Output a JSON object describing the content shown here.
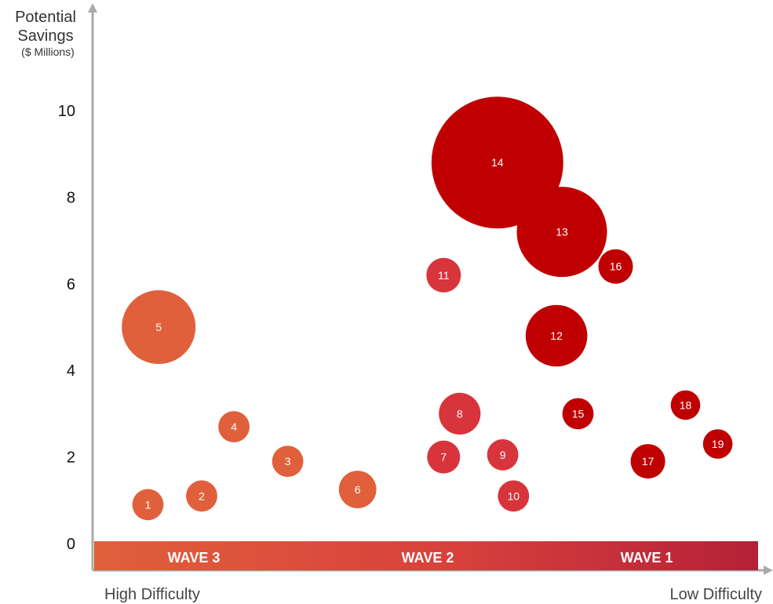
{
  "chart_data": {
    "type": "scatter",
    "ylabel": {
      "line1": "Potential",
      "line2": "Savings",
      "line3": "($ Millions)"
    },
    "ylim": [
      0,
      11
    ],
    "yticks": [
      0,
      2,
      4,
      6,
      8,
      10
    ],
    "x_axis_left_label": "High Difficulty",
    "x_axis_right_label": "Low Difficulty",
    "waves": [
      {
        "label": "WAVE 3"
      },
      {
        "label": "WAVE 2"
      },
      {
        "label": "WAVE 1"
      }
    ],
    "band_colors": [
      "#e0603b",
      "#d8403c",
      "#b42138"
    ],
    "points": [
      {
        "id": "1",
        "x": 1.0,
        "y": 0.9,
        "size": 0.9,
        "color": "#e0603b"
      },
      {
        "id": "2",
        "x": 2.0,
        "y": 1.1,
        "size": 0.9,
        "color": "#e0603b"
      },
      {
        "id": "3",
        "x": 3.6,
        "y": 1.9,
        "size": 0.9,
        "color": "#e0603b"
      },
      {
        "id": "4",
        "x": 2.6,
        "y": 2.7,
        "size": 0.9,
        "color": "#e0603b"
      },
      {
        "id": "5",
        "x": 1.2,
        "y": 5.0,
        "size": 5.0,
        "color": "#e0603b"
      },
      {
        "id": "6",
        "x": 4.9,
        "y": 1.25,
        "size": 1.3,
        "color": "#e0603b"
      },
      {
        "id": "7",
        "x": 6.5,
        "y": 2.0,
        "size": 1.0,
        "color": "#d8343c"
      },
      {
        "id": "8",
        "x": 6.8,
        "y": 3.0,
        "size": 1.6,
        "color": "#d8343c"
      },
      {
        "id": "9",
        "x": 7.6,
        "y": 2.05,
        "size": 0.9,
        "color": "#d8343c"
      },
      {
        "id": "10",
        "x": 7.8,
        "y": 1.1,
        "size": 0.9,
        "color": "#d8343c"
      },
      {
        "id": "11",
        "x": 6.5,
        "y": 6.2,
        "size": 1.1,
        "color": "#d8343c"
      },
      {
        "id": "12",
        "x": 8.6,
        "y": 4.8,
        "size": 3.5,
        "color": "#c00000"
      },
      {
        "id": "13",
        "x": 8.7,
        "y": 7.2,
        "size": 7.5,
        "color": "#c00000"
      },
      {
        "id": "14",
        "x": 7.5,
        "y": 8.8,
        "size": 16.0,
        "color": "#c00000"
      },
      {
        "id": "15",
        "x": 9.0,
        "y": 3.0,
        "size": 0.9,
        "color": "#c00000"
      },
      {
        "id": "16",
        "x": 9.7,
        "y": 6.4,
        "size": 1.1,
        "color": "#c00000"
      },
      {
        "id": "17",
        "x": 10.3,
        "y": 1.9,
        "size": 1.1,
        "color": "#c00000"
      },
      {
        "id": "18",
        "x": 11.0,
        "y": 3.2,
        "size": 0.8,
        "color": "#c00000"
      },
      {
        "id": "19",
        "x": 11.6,
        "y": 2.3,
        "size": 0.8,
        "color": "#c00000"
      }
    ]
  }
}
